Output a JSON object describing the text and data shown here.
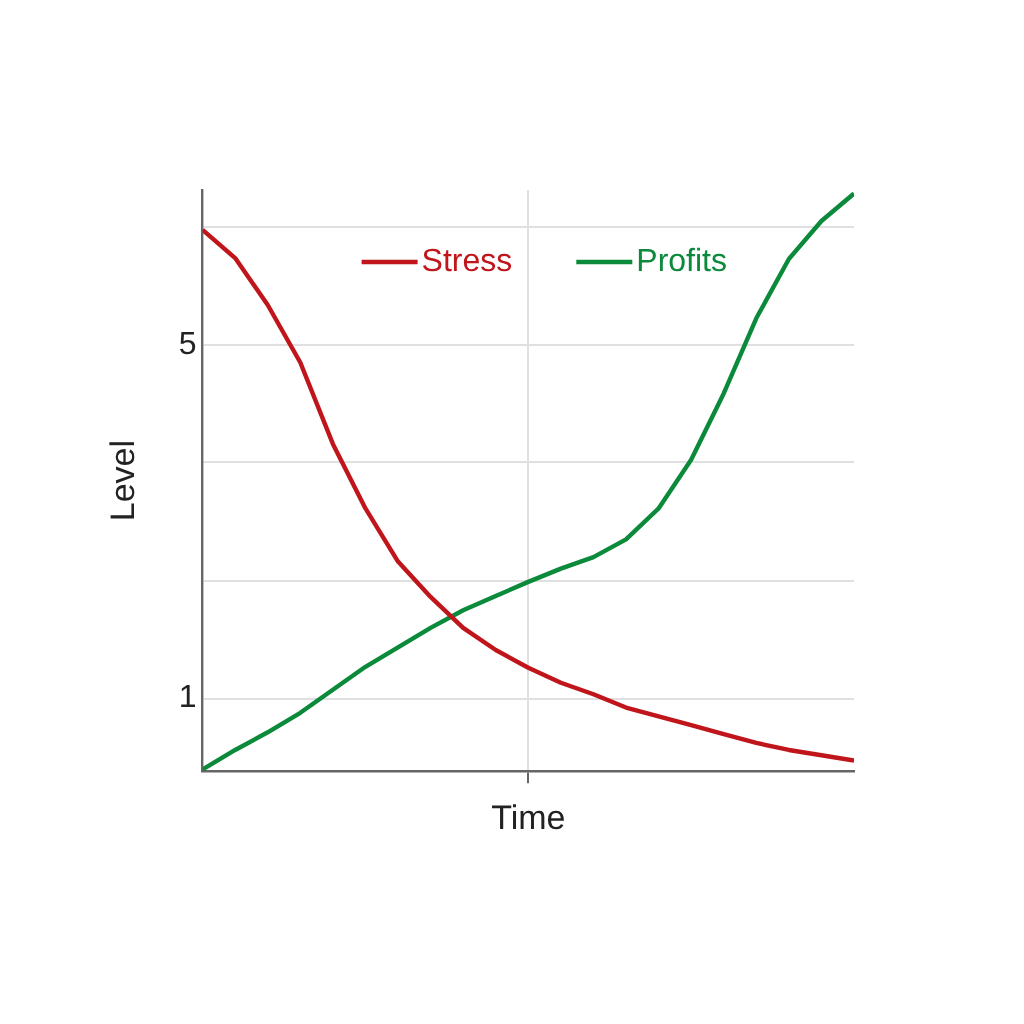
{
  "chart_data": {
    "type": "line",
    "xlabel": "Time",
    "ylabel": "Level",
    "categories": [
      null,
      null,
      null,
      null,
      null,
      null,
      null,
      null,
      null,
      null,
      null,
      null,
      null,
      null,
      null,
      null,
      null,
      null,
      null,
      null,
      null
    ],
    "ylim": [
      0.18,
      6.75
    ],
    "yticks": [
      1,
      {
        "value": 2.33,
        "label": null
      },
      {
        "value": 3.67,
        "label": null
      },
      5,
      {
        "value": 6.33,
        "label": null
      }
    ],
    "tick_labels": "y",
    "grid": true,
    "legend": "top",
    "marker": "none",
    "line_style": "solid",
    "series": [
      {
        "name": "Stress",
        "color": "#c0151b",
        "values": [
          6.3,
          5.98,
          5.45,
          4.8,
          3.88,
          3.15,
          2.55,
          2.15,
          1.8,
          1.55,
          1.35,
          1.18,
          1.05,
          0.9,
          0.8,
          0.7,
          0.6,
          0.5,
          0.42,
          0.36,
          0.3
        ]
      },
      {
        "name": "Profits",
        "color": "#0a8a3a",
        "values": [
          0.2,
          0.42,
          0.62,
          0.84,
          1.1,
          1.36,
          1.58,
          1.8,
          2.0,
          2.16,
          2.32,
          2.47,
          2.6,
          2.8,
          3.15,
          3.7,
          4.45,
          5.3,
          5.97,
          6.4,
          6.71
        ]
      }
    ]
  }
}
